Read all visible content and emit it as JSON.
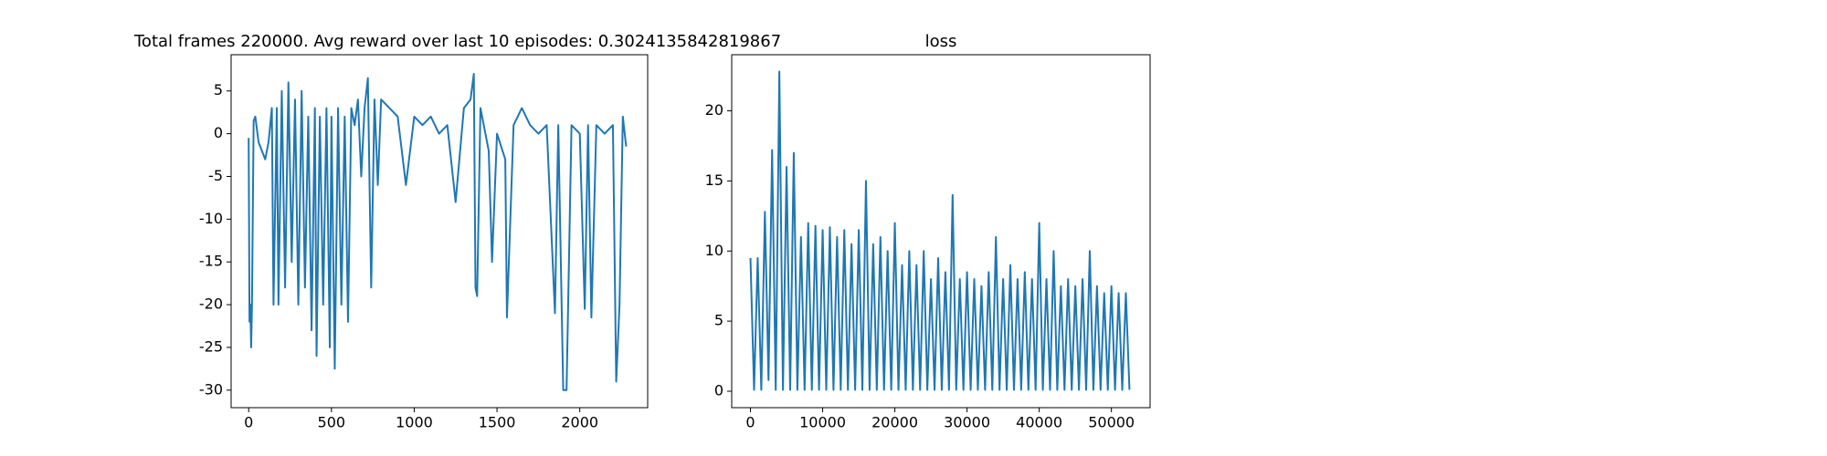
{
  "chart_data": [
    {
      "type": "line",
      "title": "Total frames 220000. Avg reward over last 10 episodes: 0.3024135842819867",
      "xlim": [
        -106,
        2410
      ],
      "ylim": [
        -32.05,
        9.24
      ],
      "xticks": [
        0,
        500,
        1000,
        1500,
        2000
      ],
      "yticks": [
        -30,
        -25,
        -20,
        -15,
        -10,
        -5,
        0,
        5
      ],
      "series": [
        {
          "color": "#1f77b4",
          "x": [
            0,
            5,
            10,
            15,
            20,
            30,
            40,
            60,
            80,
            100,
            120,
            140,
            150,
            170,
            180,
            200,
            220,
            240,
            260,
            280,
            300,
            320,
            340,
            360,
            380,
            400,
            410,
            430,
            450,
            470,
            490,
            500,
            520,
            540,
            560,
            580,
            600,
            620,
            640,
            660,
            680,
            700,
            720,
            740,
            760,
            780,
            800,
            850,
            900,
            950,
            1000,
            1050,
            1100,
            1150,
            1200,
            1250,
            1300,
            1340,
            1360,
            1370,
            1380,
            1400,
            1450,
            1470,
            1500,
            1550,
            1560,
            1600,
            1650,
            1700,
            1750,
            1800,
            1850,
            1870,
            1900,
            1920,
            1950,
            2000,
            2030,
            2050,
            2070,
            2100,
            2150,
            2200,
            2220,
            2240,
            2260,
            2280
          ],
          "values": [
            -0.5,
            -22,
            -20,
            -25,
            -20,
            1.5,
            2,
            -1,
            -2,
            -3,
            -1,
            3,
            -20,
            3,
            -20,
            5,
            -18,
            6,
            -15,
            4,
            -20,
            5,
            -18,
            2,
            -23,
            3,
            -26,
            2,
            -20,
            3,
            -25,
            2,
            -27.5,
            3,
            -20,
            2,
            -22,
            3,
            1,
            4,
            -5,
            3,
            6.5,
            -18,
            4,
            -6,
            4,
            3,
            2,
            -6,
            2,
            1,
            2,
            0,
            1,
            -8,
            3,
            4,
            7,
            -18,
            -19,
            3,
            -2,
            -15,
            0,
            -3,
            -21.5,
            1,
            3,
            1,
            0,
            1,
            -21,
            1,
            -30,
            -30,
            1,
            0,
            -20.5,
            1,
            -21.5,
            1,
            0,
            1,
            -29,
            -20,
            2,
            -1.5
          ]
        }
      ]
    },
    {
      "type": "line",
      "title": "loss",
      "xlim": [
        -2597,
        55357
      ],
      "ylim": [
        -1.17,
        24
      ],
      "xticks": [
        0,
        10000,
        20000,
        30000,
        40000,
        50000
      ],
      "yticks": [
        0,
        5,
        10,
        15,
        20
      ],
      "series": [
        {
          "color": "#1f77b4",
          "x": [
            0,
            500,
            1000,
            1500,
            2000,
            2500,
            3000,
            3500,
            4000,
            4500,
            5000,
            5500,
            6000,
            6500,
            7000,
            7500,
            8000,
            8500,
            9000,
            9500,
            10000,
            10500,
            11000,
            11500,
            12000,
            12500,
            13000,
            13500,
            14000,
            14500,
            15000,
            15500,
            16000,
            16500,
            17000,
            17500,
            18000,
            18500,
            19000,
            19500,
            20000,
            20500,
            21000,
            21500,
            22000,
            22500,
            23000,
            23500,
            24000,
            24500,
            25000,
            25500,
            26000,
            26500,
            27000,
            27500,
            28000,
            28500,
            29000,
            29500,
            30000,
            30500,
            31000,
            31500,
            32000,
            32500,
            33000,
            33500,
            34000,
            34500,
            35000,
            35500,
            36000,
            36500,
            37000,
            37500,
            38000,
            38500,
            39000,
            39500,
            40000,
            40500,
            41000,
            41500,
            42000,
            42500,
            43000,
            43500,
            44000,
            44500,
            45000,
            45500,
            46000,
            46500,
            47000,
            47500,
            48000,
            48500,
            49000,
            49500,
            50000,
            50500,
            51000,
            51500,
            52000,
            52500
          ],
          "values": [
            9.5,
            0.1,
            9.5,
            0.1,
            12.8,
            0.8,
            17.2,
            0.1,
            22.8,
            0.1,
            16,
            0.1,
            17,
            0.1,
            11,
            0.1,
            12,
            0.1,
            11.8,
            0.1,
            11.5,
            0.1,
            11.7,
            0.1,
            11,
            0.1,
            11.5,
            0.1,
            10.5,
            0.1,
            11.5,
            0.1,
            15,
            0.1,
            10.5,
            0.1,
            11,
            0.1,
            10,
            0.1,
            12,
            0.1,
            9,
            0.1,
            10,
            0.1,
            9,
            0.1,
            10,
            0.1,
            8,
            0.1,
            9.5,
            0.1,
            8.5,
            0.1,
            14,
            0.1,
            8,
            0.1,
            8.5,
            0.1,
            8,
            0.1,
            7.5,
            0.1,
            8.5,
            0.1,
            11,
            0.1,
            8,
            0.1,
            9,
            0.1,
            8,
            0.1,
            8.5,
            0.1,
            8,
            0.1,
            12,
            0.1,
            8,
            0.1,
            10,
            0.1,
            7.5,
            0.1,
            8,
            0.1,
            7.5,
            0.1,
            8,
            0.1,
            10,
            0.1,
            7.5,
            0.1,
            7,
            0.1,
            7.5,
            0.1,
            7,
            0.1,
            7,
            0.1
          ]
        }
      ]
    }
  ]
}
